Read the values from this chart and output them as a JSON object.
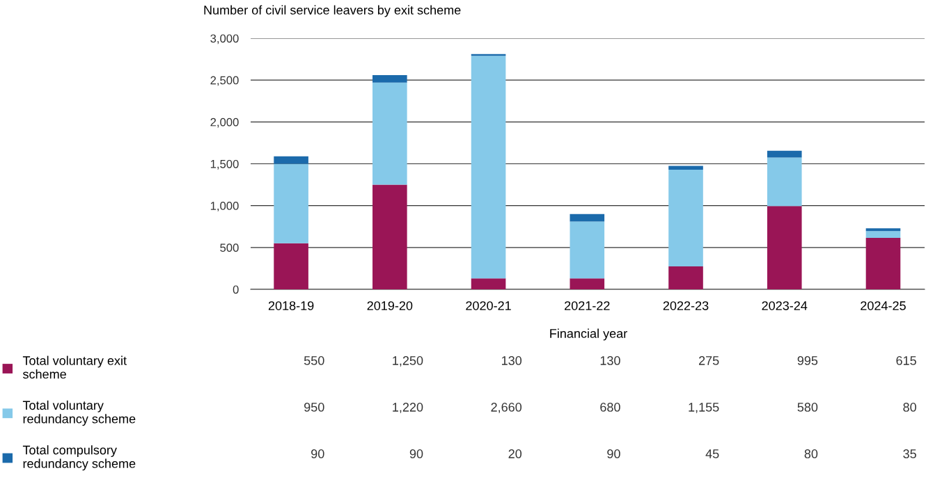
{
  "chart_data": {
    "type": "bar",
    "title": "Number of civil service leavers by exit scheme",
    "xlabel": "Financial year",
    "categories": [
      "2018-19",
      "2019-20",
      "2020-21",
      "2021-22",
      "2022-23",
      "2023-24",
      "2024-25"
    ],
    "series": [
      {
        "name": "Total voluntary exit scheme",
        "color": "#9a1556",
        "values": [
          550,
          1250,
          130,
          130,
          275,
          995,
          615
        ],
        "value_labels": [
          "550",
          "1,250",
          "130",
          "130",
          "275",
          "995",
          "615"
        ]
      },
      {
        "name": "Total voluntary redundancy scheme",
        "color": "#85c9e9",
        "values": [
          950,
          1220,
          2660,
          680,
          1155,
          580,
          80
        ],
        "value_labels": [
          "950",
          "1,220",
          "2,660",
          "680",
          "1,155",
          "580",
          "80"
        ]
      },
      {
        "name": "Total compulsory redundancy scheme",
        "color": "#1b6aab",
        "values": [
          90,
          90,
          20,
          90,
          45,
          80,
          35
        ],
        "value_labels": [
          "90",
          "90",
          "20",
          "90",
          "45",
          "80",
          "35"
        ]
      }
    ],
    "stacked": true,
    "ylim": [
      0,
      3000
    ],
    "yticks": [
      {
        "value": 0,
        "label": "0"
      },
      {
        "value": 500,
        "label": "500"
      },
      {
        "value": 1000,
        "label": "1,000"
      },
      {
        "value": 1500,
        "label": "1,500"
      },
      {
        "value": 2000,
        "label": "2,000"
      },
      {
        "value": 2500,
        "label": "2,500"
      },
      {
        "value": 3000,
        "label": "3,000"
      }
    ],
    "grid": "y",
    "legend": "bottom left"
  }
}
